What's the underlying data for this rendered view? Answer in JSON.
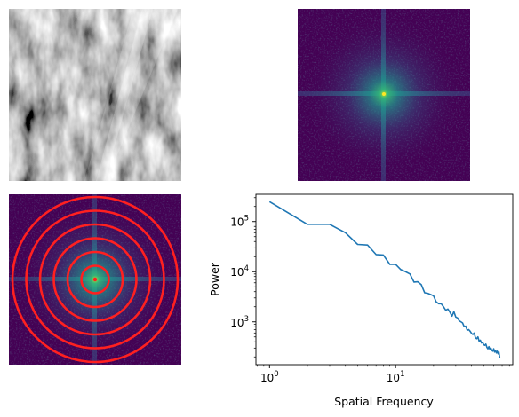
{
  "figure": {
    "panels": [
      {
        "id": "image",
        "kind": "grayscale-image",
        "axes": "off"
      },
      {
        "id": "fft",
        "kind": "fft-magnitude-image",
        "colormap": "viridis",
        "axes": "off"
      },
      {
        "id": "fft-rings",
        "kind": "fft-magnitude-image",
        "colormap": "viridis",
        "axes": "off",
        "ring_color": "#ff2020",
        "center_marker_color": "#ff2020",
        "ring_count": 6
      }
    ]
  },
  "chart_data": {
    "type": "line",
    "title": "",
    "xlabel": "Spatial Frequency",
    "ylabel": "Power",
    "xscale": "log",
    "yscale": "log",
    "xlim": [
      0.78,
      85
    ],
    "ylim": [
      140,
      350000
    ],
    "grid": false,
    "line_color": "#1f77b4",
    "x_ticks": [
      {
        "value": 1,
        "base": "10",
        "exp": "0"
      },
      {
        "value": 10,
        "base": "10",
        "exp": "1"
      }
    ],
    "y_ticks": [
      {
        "value": 1000,
        "base": "10",
        "exp": "3"
      },
      {
        "value": 10000,
        "base": "10",
        "exp": "4"
      },
      {
        "value": 100000,
        "base": "10",
        "exp": "5"
      }
    ],
    "series": [
      {
        "x": [
          1,
          2,
          3,
          4,
          5,
          6,
          7,
          8,
          9,
          10,
          11,
          12,
          13,
          14,
          15,
          16,
          17,
          18,
          19,
          20,
          21,
          22,
          23,
          24,
          25,
          26,
          27,
          28,
          29,
          30,
          31,
          32,
          33,
          34,
          35,
          36,
          37,
          38,
          39,
          40,
          41,
          42,
          43,
          44,
          45,
          46,
          47,
          48,
          49,
          50,
          51,
          52,
          53,
          54,
          55,
          56,
          57,
          58,
          59,
          60,
          61,
          62,
          63,
          64,
          65,
          66,
          67
        ],
        "y": [
          250000,
          88000,
          88000,
          60000,
          35000,
          34000,
          22000,
          21500,
          14000,
          14000,
          11000,
          10000,
          9000,
          6200,
          6300,
          5500,
          3800,
          3700,
          3500,
          3300,
          2500,
          2300,
          2300,
          2000,
          1700,
          1800,
          1550,
          1300,
          1600,
          1250,
          1200,
          1050,
          1000,
          950,
          800,
          820,
          680,
          700,
          650,
          590,
          560,
          600,
          480,
          460,
          500,
          410,
          430,
          380,
          390,
          350,
          340,
          360,
          310,
          290,
          320,
          280,
          300,
          270,
          260,
          290,
          250,
          270,
          240,
          260,
          230,
          250,
          190
        ]
      }
    ]
  }
}
